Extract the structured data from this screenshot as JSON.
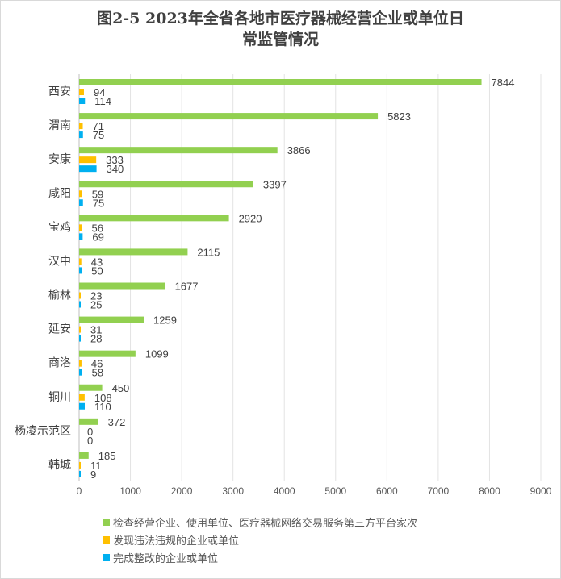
{
  "chart_data": {
    "type": "bar",
    "orientation": "horizontal",
    "title_line1": "图2-5  2023年全省各地市医疗器械经营企业或单位日",
    "title_line2": "常监管情况",
    "categories": [
      "西安",
      "渭南",
      "安康",
      "咸阳",
      "宝鸡",
      "汉中",
      "榆林",
      "延安",
      "商洛",
      "铜川",
      "杨凌示范区",
      "韩城"
    ],
    "series": [
      {
        "name": "检查经营企业、使用单位、医疗器械网络交易服务第三方平台家次",
        "color": "#92d050",
        "values": [
          7844,
          5823,
          3866,
          3397,
          2920,
          2115,
          1677,
          1259,
          1099,
          450,
          372,
          185
        ]
      },
      {
        "name": "发现违法违规的企业或单位",
        "color": "#ffc000",
        "values": [
          94,
          71,
          333,
          59,
          56,
          43,
          23,
          31,
          46,
          108,
          0,
          11
        ]
      },
      {
        "name": "完成整改的企业或单位",
        "color": "#00b0f0",
        "values": [
          114,
          75,
          340,
          75,
          69,
          50,
          25,
          28,
          58,
          110,
          0,
          9
        ]
      }
    ],
    "xlim": [
      0,
      9000
    ],
    "xticks": [
      "0",
      "1000",
      "2000",
      "3000",
      "4000",
      "5000",
      "6000",
      "7000",
      "8000",
      "9000"
    ],
    "grid": true,
    "legend_position": "bottom"
  }
}
